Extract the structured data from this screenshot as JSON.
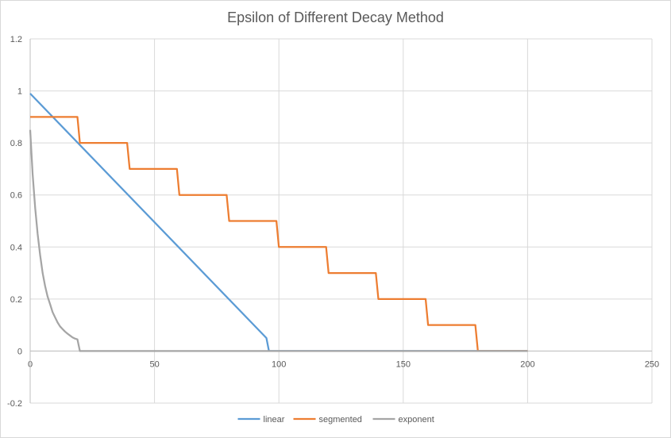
{
  "chart_data": {
    "type": "line",
    "title": "Epsilon of Different Decay Method",
    "xlabel": "",
    "ylabel": "",
    "xlim": [
      0,
      250
    ],
    "ylim": [
      -0.2,
      1.2
    ],
    "xticks": [
      0,
      50,
      100,
      150,
      200,
      250
    ],
    "yticks": [
      -0.2,
      0,
      0.2,
      0.4,
      0.6,
      0.8,
      1,
      1.2
    ],
    "xtick_labels": [
      "0",
      "50",
      "100",
      "150",
      "200",
      "250"
    ],
    "ytick_labels": [
      "-0.2",
      "0",
      "0.2",
      "0.4",
      "0.6",
      "0.8",
      "1",
      "1.2"
    ],
    "grid": true,
    "legend": "bottom",
    "series": [
      {
        "name": "linear",
        "color": "#5b9bd5",
        "x": [
          0,
          95,
          96,
          200
        ],
        "y": [
          0.99,
          0.05,
          0,
          0
        ]
      },
      {
        "name": "segmented",
        "color": "#ed7d31",
        "x": [
          0,
          19,
          20,
          39,
          40,
          59,
          60,
          79,
          80,
          99,
          100,
          119,
          120,
          139,
          140,
          159,
          160,
          179,
          180,
          200
        ],
        "y": [
          0.9,
          0.9,
          0.8,
          0.8,
          0.7,
          0.7,
          0.6,
          0.6,
          0.5,
          0.5,
          0.4,
          0.4,
          0.3,
          0.3,
          0.2,
          0.2,
          0.1,
          0.1,
          0,
          0
        ]
      },
      {
        "name": "exponent",
        "color": "#a5a5a5",
        "x": [
          0,
          1,
          2,
          3,
          4,
          5,
          6,
          7,
          8,
          9,
          10,
          11,
          12,
          13,
          14,
          15,
          16,
          17,
          18,
          19,
          20,
          200
        ],
        "y": [
          0.85,
          0.68,
          0.55,
          0.45,
          0.37,
          0.3,
          0.25,
          0.21,
          0.18,
          0.15,
          0.13,
          0.11,
          0.095,
          0.085,
          0.075,
          0.067,
          0.06,
          0.053,
          0.048,
          0.045,
          0,
          0
        ]
      }
    ]
  }
}
